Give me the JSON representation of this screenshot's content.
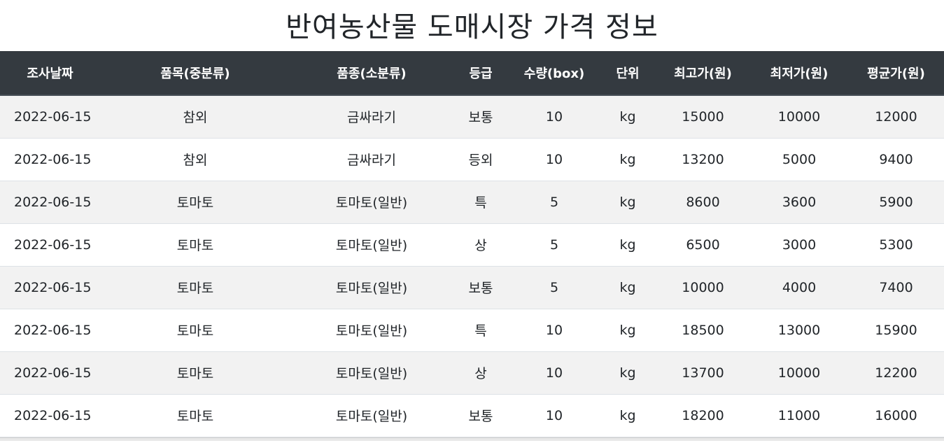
{
  "title": "반여농산물 도매시장 가격 정보",
  "table": {
    "headers": [
      "조사날짜",
      "품목(중분류)",
      "품종(소분류)",
      "등급",
      "수량(box)",
      "단위",
      "최고가(원)",
      "최저가(원)",
      "평균가(원)"
    ],
    "rows": [
      [
        "2022-06-15",
        "참외",
        "금싸라기",
        "보통",
        "10",
        "kg",
        "15000",
        "10000",
        "12000"
      ],
      [
        "2022-06-15",
        "참외",
        "금싸라기",
        "등외",
        "10",
        "kg",
        "13200",
        "5000",
        "9400"
      ],
      [
        "2022-06-15",
        "토마토",
        "토마토(일반)",
        "특",
        "5",
        "kg",
        "8600",
        "3600",
        "5900"
      ],
      [
        "2022-06-15",
        "토마토",
        "토마토(일반)",
        "상",
        "5",
        "kg",
        "6500",
        "3000",
        "5300"
      ],
      [
        "2022-06-15",
        "토마토",
        "토마토(일반)",
        "보통",
        "5",
        "kg",
        "10000",
        "4000",
        "7400"
      ],
      [
        "2022-06-15",
        "토마토",
        "토마토(일반)",
        "특",
        "10",
        "kg",
        "18500",
        "13000",
        "15900"
      ],
      [
        "2022-06-15",
        "토마토",
        "토마토(일반)",
        "상",
        "10",
        "kg",
        "13700",
        "10000",
        "12200"
      ],
      [
        "2022-06-15",
        "토마토",
        "토마토(일반)",
        "보통",
        "10",
        "kg",
        "18200",
        "11000",
        "16000"
      ]
    ]
  },
  "colors": {
    "header_bg": "#343a40",
    "header_text": "#ffffff",
    "stripe_bg": "#f2f2f2"
  }
}
